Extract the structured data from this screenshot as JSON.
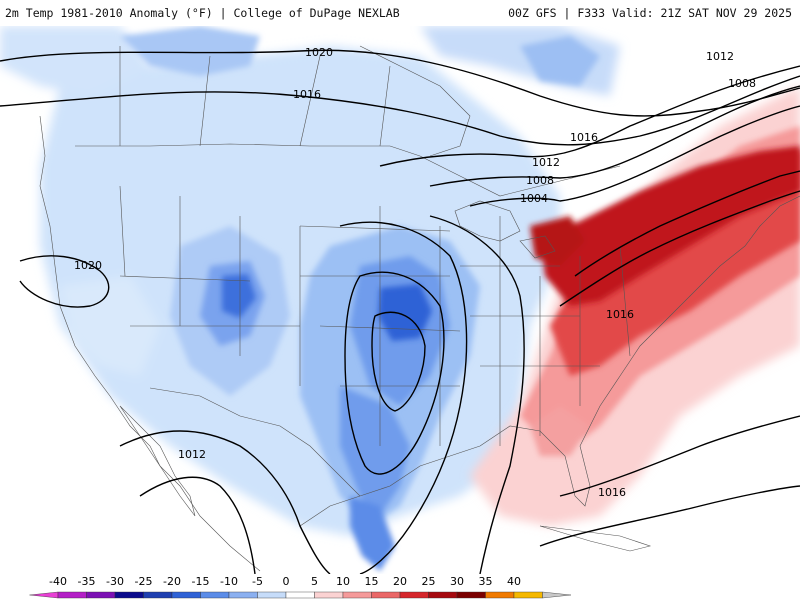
{
  "header": {
    "left": "2m Temp 1981-2010 Anomaly (°F) | College of DuPage NEXLAB",
    "right": "00Z GFS | F333 Valid: 21Z SAT NOV 29 2025"
  },
  "isobar_labels": [
    "1020",
    "1016",
    "1012",
    "1008",
    "1016",
    "1012",
    "1008",
    "1004",
    "1020",
    "1016",
    "1012",
    "1016"
  ],
  "colorbar": {
    "ticks": [
      "-40",
      "-35",
      "-30",
      "-25",
      "-20",
      "-15",
      "-10",
      "-5",
      "0",
      "5",
      "10",
      "15",
      "20",
      "25",
      "30",
      "35",
      "40"
    ],
    "colors": [
      "#e83fd4",
      "#b41fc7",
      "#7c10b4",
      "#0b0b8c",
      "#1f3fb0",
      "#2f62d6",
      "#5b8ce8",
      "#8bb0f0",
      "#c6dcf9",
      "#ffffff",
      "#fbd2d2",
      "#f59a9a",
      "#ea6767",
      "#d6262b",
      "#a6090f",
      "#7a0000",
      "#f07a00",
      "#f5b800",
      "#c8c8c8"
    ]
  }
}
